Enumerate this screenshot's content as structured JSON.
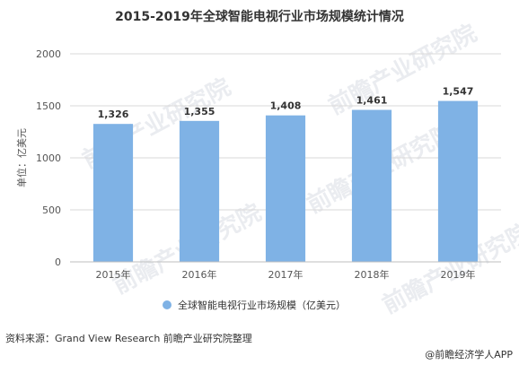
{
  "source_text": "资料来源：Grand View Research 前瞻产业研究院整理",
  "brand_text": "@前瞻经济学人APP",
  "watermark_text": "前瞻产业研究院",
  "colors": {
    "bar": "#7fb2e5",
    "grid": "#d9d9d9",
    "axis": "#bfbfbf"
  },
  "chart_data": {
    "type": "bar",
    "title": "2015-2019年全球智能电视行业市场规模统计情况",
    "xlabel": "",
    "ylabel": "单位：亿美元",
    "categories": [
      "2015年",
      "2016年",
      "2017年",
      "2018年",
      "2019年"
    ],
    "series": [
      {
        "name": "全球智能电视行业市场规模（亿美元）",
        "values": [
          1326,
          1355,
          1408,
          1461,
          1547
        ],
        "labels": [
          "1,326",
          "1,355",
          "1,408",
          "1,461",
          "1,547"
        ]
      }
    ],
    "ylim": [
      0,
      2000
    ],
    "yticks": [
      0,
      500,
      1000,
      1500,
      2000
    ],
    "grid": true,
    "legend_position": "bottom-center"
  }
}
